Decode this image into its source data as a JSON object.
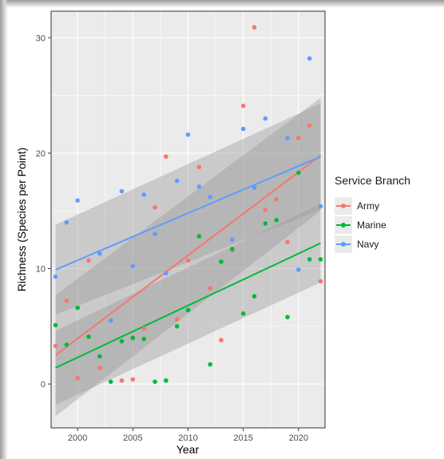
{
  "chart_data": {
    "type": "scatter",
    "title": "",
    "xlabel": "Year",
    "ylabel": "Richness (Species per Point)",
    "xlim": [
      1997.6,
      2022.4
    ],
    "ylim": [
      -3.8,
      32.3
    ],
    "x_ticks": [
      "2000",
      "2005",
      "2010",
      "2015",
      "2020"
    ],
    "x_tick_values": [
      2000,
      2005,
      2010,
      2015,
      2020
    ],
    "y_ticks": [
      "0",
      "10",
      "20",
      "30"
    ],
    "y_tick_values": [
      0,
      10,
      20,
      30
    ],
    "grid": true,
    "legend_title": "Service Branch",
    "legend_position": "right",
    "series": [
      {
        "name": "Army",
        "color": "#F8766D",
        "points": [
          [
            1998,
            3.3
          ],
          [
            1999,
            7.2
          ],
          [
            2000,
            0.5
          ],
          [
            2001,
            10.7
          ],
          [
            2002,
            1.4
          ],
          [
            2003,
            5.5
          ],
          [
            2004,
            0.3
          ],
          [
            2005,
            0.4
          ],
          [
            2006,
            4.8
          ],
          [
            2007,
            15.3
          ],
          [
            2008,
            19.7
          ],
          [
            2009,
            5.6
          ],
          [
            2010,
            10.7
          ],
          [
            2011,
            18.8
          ],
          [
            2012,
            8.3
          ],
          [
            2013,
            3.8
          ],
          [
            2014,
            11.6
          ],
          [
            2015,
            24.1
          ],
          [
            2016,
            30.9
          ],
          [
            2017,
            15.1
          ],
          [
            2018,
            16.0
          ],
          [
            2019,
            12.3
          ],
          [
            2020,
            21.3
          ],
          [
            2021,
            22.4
          ],
          [
            2022,
            8.9
          ]
        ],
        "fit": [
          [
            1998,
            2.5
          ],
          [
            2022,
            19.8
          ]
        ],
        "ci_lower": [
          [
            1998,
            -2.8
          ],
          [
            2022,
            15.0
          ]
        ],
        "ci_upper": [
          [
            1998,
            7.7
          ],
          [
            2022,
            24.8
          ]
        ]
      },
      {
        "name": "Marine",
        "color": "#00BA38",
        "points": [
          [
            1998,
            5.1
          ],
          [
            1999,
            3.4
          ],
          [
            2000,
            6.6
          ],
          [
            2001,
            4.1
          ],
          [
            2002,
            2.4
          ],
          [
            2003,
            0.2
          ],
          [
            2004,
            3.7
          ],
          [
            2005,
            4.0
          ],
          [
            2006,
            3.9
          ],
          [
            2007,
            0.2
          ],
          [
            2008,
            0.3
          ],
          [
            2009,
            5.0
          ],
          [
            2010,
            6.4
          ],
          [
            2011,
            12.8
          ],
          [
            2012,
            1.7
          ],
          [
            2013,
            10.6
          ],
          [
            2014,
            11.7
          ],
          [
            2015,
            6.1
          ],
          [
            2016,
            7.6
          ],
          [
            2017,
            13.9
          ],
          [
            2018,
            14.2
          ],
          [
            2019,
            5.8
          ],
          [
            2020,
            18.3
          ],
          [
            2021,
            10.8
          ],
          [
            2022,
            10.8
          ]
        ],
        "fit": [
          [
            1998,
            1.4
          ],
          [
            2022,
            12.2
          ]
        ],
        "ci_lower": [
          [
            1998,
            -1.8
          ],
          [
            2022,
            8.8
          ]
        ],
        "ci_upper": [
          [
            1998,
            4.6
          ],
          [
            2022,
            15.6
          ]
        ]
      },
      {
        "name": "Navy",
        "color": "#619CFF",
        "points": [
          [
            1998,
            9.3
          ],
          [
            1999,
            14.0
          ],
          [
            2000,
            15.9
          ],
          [
            2002,
            11.3
          ],
          [
            2003,
            5.5
          ],
          [
            2004,
            16.7
          ],
          [
            2005,
            10.2
          ],
          [
            2006,
            16.4
          ],
          [
            2007,
            13.0
          ],
          [
            2008,
            9.6
          ],
          [
            2009,
            17.6
          ],
          [
            2010,
            21.6
          ],
          [
            2011,
            17.1
          ],
          [
            2012,
            16.2
          ],
          [
            2014,
            12.5
          ],
          [
            2015,
            22.1
          ],
          [
            2016,
            17.0
          ],
          [
            2017,
            23.0
          ],
          [
            2019,
            21.3
          ],
          [
            2020,
            9.9
          ],
          [
            2021,
            28.2
          ],
          [
            2022,
            15.4
          ]
        ],
        "fit": [
          [
            1998,
            9.9
          ],
          [
            2022,
            19.7
          ]
        ],
        "ci_lower": [
          [
            1998,
            6.0
          ],
          [
            2022,
            15.1
          ]
        ],
        "ci_upper": [
          [
            1998,
            13.8
          ],
          [
            2022,
            24.3
          ]
        ]
      }
    ]
  },
  "colors": {
    "panel_background": "#EBEBEB",
    "grid_line": "#FFFFFF",
    "ribbon": "#999999",
    "axis_text": "#4D4D4D"
  }
}
